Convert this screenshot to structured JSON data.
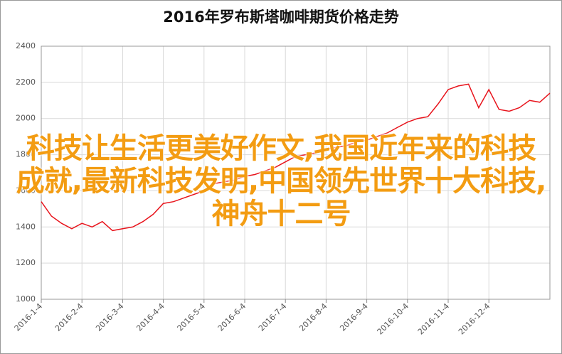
{
  "chart_data": {
    "type": "line",
    "title": "2016年罗布斯塔咖啡期货价格走势",
    "categories": [
      "2016-1-4",
      null,
      null,
      null,
      "2016-2-4",
      null,
      null,
      null,
      "2016-3-4",
      null,
      null,
      null,
      "2016-4-4",
      null,
      null,
      null,
      "2016-5-4",
      null,
      null,
      null,
      "2016-6-4",
      null,
      null,
      null,
      "2016-7-4",
      null,
      null,
      null,
      "2016-8-4",
      null,
      null,
      null,
      "2016-9-4",
      null,
      null,
      null,
      "2016-10-4",
      null,
      null,
      null,
      "2016-11-4",
      null,
      null,
      null,
      "2016-12-4",
      null,
      null,
      null,
      null,
      null,
      null
    ],
    "series": [
      {
        "color": "#e8141c",
        "values": [
          1540,
          1460,
          1420,
          1390,
          1420,
          1400,
          1430,
          1380,
          1390,
          1400,
          1430,
          1470,
          1530,
          1540,
          1560,
          1580,
          1600,
          1640,
          1650,
          1660,
          1680,
          1690,
          1710,
          1730,
          1760,
          1790,
          1800,
          1810,
          1830,
          1840,
          1850,
          1870,
          1880,
          1900,
          1920,
          1950,
          1980,
          2000,
          2010,
          2080,
          2160,
          2180,
          2190,
          2060,
          2160,
          2050,
          2040,
          2060,
          2100,
          2090,
          2140
        ]
      }
    ],
    "ylim": [
      1000,
      2400
    ],
    "yticks": [
      1000,
      1200,
      1400,
      1600,
      1800,
      2000,
      2200,
      2400
    ],
    "grid": true
  },
  "overlay_text": "科技让生活更美好作文,我国近年来的科技成就,最新科技发明,中国领先世界十大科技,神舟十二号"
}
